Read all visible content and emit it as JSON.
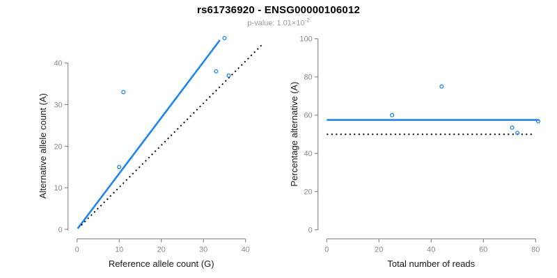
{
  "header": {
    "title": "rs61736920 - ENSG00000106012",
    "subtitle_prefix": "p-value: ",
    "subtitle_mantissa": "1.01×10",
    "subtitle_exponent": "-2"
  },
  "colors": {
    "accent_blue": "#1C86EE",
    "axis_line": "#8c8c8c",
    "tick_label": "#8a8a8a",
    "axis_title": "#1a1a1a",
    "dotted_line": "#000000",
    "background": "#ffffff"
  },
  "chart_data": [
    {
      "type": "scatter",
      "name": "allele-counts-panel",
      "xlabel": "Reference allele count (G)",
      "ylabel": "Alternative allele count (A)",
      "xlim": [
        0,
        40
      ],
      "ylim": [
        0,
        40
      ],
      "xticks": [
        0,
        10,
        20,
        30,
        40
      ],
      "yticks": [
        0,
        10,
        20,
        30,
        40
      ],
      "grid": false,
      "points": [
        {
          "x": 10,
          "y": 15
        },
        {
          "x": 11,
          "y": 33
        },
        {
          "x": 33,
          "y": 38
        },
        {
          "x": 36,
          "y": 37
        },
        {
          "x": 35,
          "y": 46
        }
      ],
      "lines": [
        {
          "name": "fit-line",
          "style": "solid",
          "color": "#1C86EE",
          "x": [
            0.15,
            33.9
          ],
          "y": [
            0.2,
            45.5
          ]
        },
        {
          "name": "identity-line",
          "style": "dotted",
          "color": "#000000",
          "x": [
            1,
            44
          ],
          "y": [
            1,
            44.5
          ]
        }
      ]
    },
    {
      "type": "scatter",
      "name": "percentage-panel",
      "xlabel": "Total number of reads",
      "ylabel": "Percentage alternative (A)",
      "xlim": [
        0,
        80
      ],
      "ylim": [
        0,
        100
      ],
      "xticks": [
        0,
        20,
        40,
        60,
        80
      ],
      "yticks": [
        0,
        20,
        40,
        60,
        80,
        100
      ],
      "grid": false,
      "points": [
        {
          "x": 25,
          "y": 60
        },
        {
          "x": 44,
          "y": 75
        },
        {
          "x": 71,
          "y": 53.5
        },
        {
          "x": 73,
          "y": 50.7
        },
        {
          "x": 81,
          "y": 56.8
        }
      ],
      "lines": [
        {
          "name": "weighted-mean-line",
          "style": "solid",
          "color": "#1C86EE",
          "x": [
            0,
            81.3
          ],
          "y": [
            57.5,
            57.5
          ]
        },
        {
          "name": "null-line",
          "style": "dotted",
          "color": "#000000",
          "x": [
            0,
            79.6
          ],
          "y": [
            50,
            50
          ]
        }
      ]
    }
  ]
}
